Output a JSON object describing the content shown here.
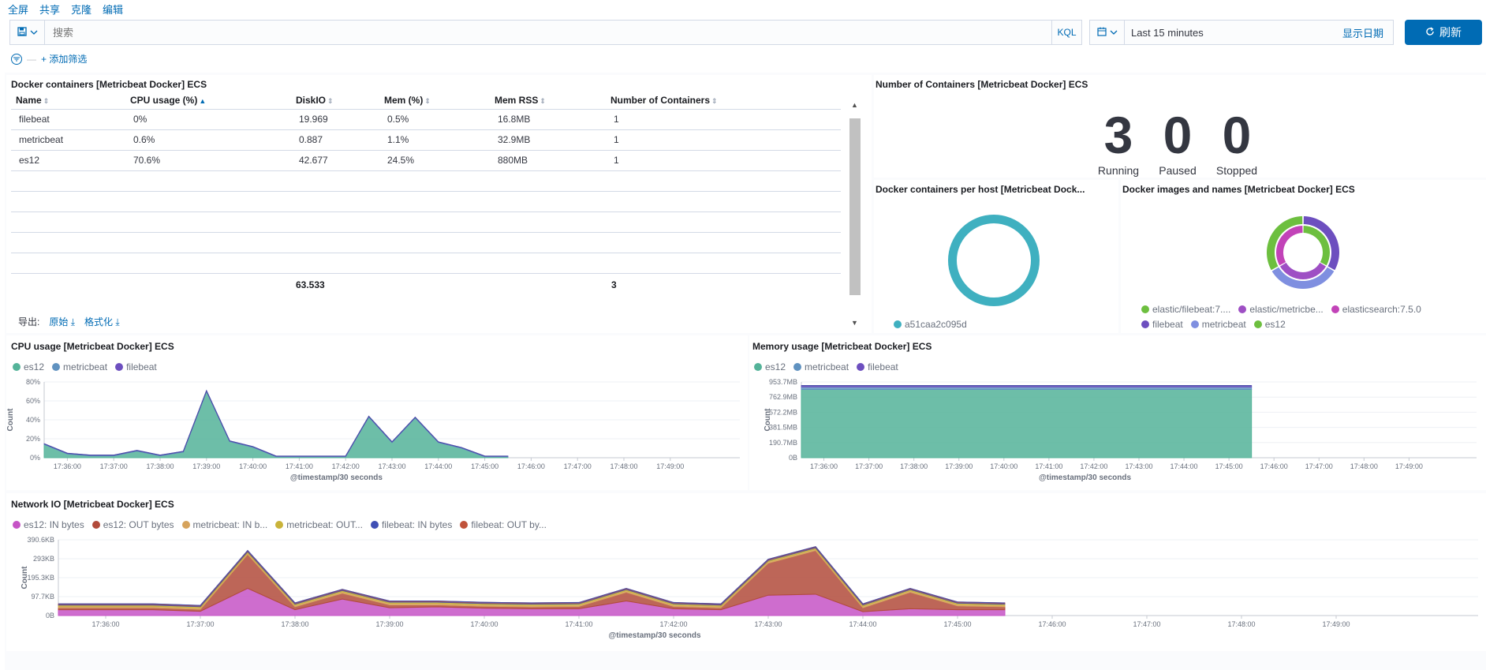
{
  "topmenu": {
    "fullscreen": "全屏",
    "share": "共享",
    "clone": "克隆",
    "edit": "编辑"
  },
  "query": {
    "placeholder": "搜索",
    "kql": "KQL"
  },
  "time": {
    "range": "Last 15 minutes",
    "show_dates": "显示日期",
    "refresh": "刷新"
  },
  "filter": {
    "add": "+ 添加筛选"
  },
  "colors": {
    "accent": "#006bb4",
    "es12": "#54b399",
    "metricbeat": "#6092c0",
    "filebeat": "#6d4fbf"
  },
  "panels": {
    "containers_table": {
      "title": "Docker containers [Metricbeat Docker] ECS",
      "columns": [
        "Name",
        "CPU usage (%)",
        "DiskIO",
        "Mem (%)",
        "Mem RSS",
        "Number of Containers"
      ],
      "rows": [
        [
          "filebeat",
          "0%",
          "19.969",
          "0.5%",
          "16.8MB",
          "1"
        ],
        [
          "metricbeat",
          "0.6%",
          "0.887",
          "1.1%",
          "32.9MB",
          "1"
        ],
        [
          "es12",
          "70.6%",
          "42.677",
          "24.5%",
          "880MB",
          "1"
        ]
      ],
      "totals": {
        "diskio": "63.533",
        "containers": "3"
      },
      "export_label": "导出:",
      "export_raw": "原始",
      "export_formatted": "格式化"
    },
    "num_containers": {
      "title": "Number of Containers [Metricbeat Docker] ECS",
      "metrics": [
        {
          "value": "3",
          "label": "Running"
        },
        {
          "value": "0",
          "label": "Paused"
        },
        {
          "value": "0",
          "label": "Stopped"
        }
      ]
    },
    "per_host": {
      "title": "Docker containers per host [Metricbeat Dock...",
      "legend": [
        "a51caa2c095d"
      ]
    },
    "images_names": {
      "title": "Docker images and names [Metricbeat Docker] ECS",
      "legend": [
        "elastic/filebeat:7....",
        "elastic/metricbe...",
        "elasticsearch:7.5.0",
        "filebeat",
        "metricbeat",
        "es12"
      ]
    },
    "cpu": {
      "title": "CPU usage [Metricbeat Docker] ECS"
    },
    "memory": {
      "title": "Memory usage [Metricbeat Docker] ECS"
    },
    "network": {
      "title": "Network IO [Metricbeat Docker] ECS"
    }
  },
  "chart_data": [
    {
      "type": "pie",
      "title": "Docker containers per host [Metricbeat Dock...",
      "categories": [
        "a51caa2c095d"
      ],
      "values": [
        3
      ],
      "colors": [
        "#3fb0c0"
      ]
    },
    {
      "type": "pie",
      "title": "Docker images and names [Metricbeat Docker] ECS",
      "inner": {
        "categories": [
          "elastic/filebeat:7....",
          "elastic/metricbe...",
          "elasticsearch:7.5.0"
        ],
        "values": [
          1,
          1,
          1
        ],
        "colors": [
          "#6dbf3f",
          "#9e4fc4",
          "#c243b8"
        ]
      },
      "outer": {
        "categories": [
          "filebeat",
          "metricbeat",
          "es12"
        ],
        "values": [
          1,
          1,
          1
        ],
        "colors": [
          "#6d4fbf",
          "#7f8fe0",
          "#6dbf3f"
        ]
      }
    },
    {
      "type": "area",
      "title": "CPU usage [Metricbeat Docker] ECS",
      "xlabel": "@timestamp/30 seconds",
      "ylabel": "Count",
      "ylim": [
        0,
        80
      ],
      "yticks": [
        "0%",
        "20%",
        "40%",
        "60%",
        "80%"
      ],
      "xticks": [
        "17:36:00",
        "17:37:00",
        "17:38:00",
        "17:39:00",
        "17:40:00",
        "17:41:00",
        "17:42:00",
        "17:43:00",
        "17:44:00",
        "17:45:00",
        "17:46:00",
        "17:47:00",
        "17:48:00",
        "17:49:00"
      ],
      "x_start": "17:35:30",
      "x_end": "17:50:30",
      "x": [
        "17:35:30",
        "17:36:00",
        "17:36:30",
        "17:37:00",
        "17:37:30",
        "17:38:00",
        "17:38:30",
        "17:39:00",
        "17:39:30",
        "17:40:00",
        "17:40:30",
        "17:41:00",
        "17:41:30",
        "17:42:00",
        "17:42:30",
        "17:43:00",
        "17:43:30",
        "17:44:00",
        "17:44:30",
        "17:45:00",
        "17:45:30"
      ],
      "legend": [
        "es12",
        "metricbeat",
        "filebeat"
      ],
      "series": [
        {
          "name": "es12",
          "color": "#54b399",
          "values": [
            14,
            4,
            2,
            2,
            7,
            2,
            6,
            70,
            17,
            11,
            1,
            1,
            1,
            1,
            43,
            16,
            42,
            16,
            10,
            1,
            1
          ]
        },
        {
          "name": "metricbeat",
          "color": "#6092c0",
          "values": [
            0.5,
            0.5,
            0.5,
            0.5,
            0.5,
            0.5,
            0.5,
            0.5,
            0.5,
            0.5,
            0.5,
            0.5,
            0.5,
            0.5,
            0.5,
            0.5,
            0.5,
            0.5,
            0.5,
            0.5,
            0.5
          ]
        },
        {
          "name": "filebeat",
          "color": "#6d4fbf",
          "values": [
            0.2,
            0.2,
            0.2,
            0.2,
            0.2,
            0.2,
            0.2,
            0.2,
            0.2,
            0.2,
            0.2,
            0.2,
            0.2,
            0.2,
            0.2,
            0.2,
            0.2,
            0.2,
            0.2,
            0.2,
            0.2
          ]
        }
      ]
    },
    {
      "type": "area",
      "title": "Memory usage [Metricbeat Docker] ECS",
      "xlabel": "@timestamp/30 seconds",
      "ylabel": "Count",
      "ylim": [
        0,
        976
      ],
      "ylim_unit": "MB",
      "yticks": [
        "0B",
        "190.7MB",
        "381.5MB",
        "572.2MB",
        "762.9MB",
        "953.7MB"
      ],
      "xticks": [
        "17:36:00",
        "17:37:00",
        "17:38:00",
        "17:39:00",
        "17:40:00",
        "17:41:00",
        "17:42:00",
        "17:43:00",
        "17:44:00",
        "17:45:00",
        "17:46:00",
        "17:47:00",
        "17:48:00",
        "17:49:00"
      ],
      "x_start": "17:35:30",
      "x_end": "17:50:30",
      "x": [
        "17:35:30",
        "17:45:30"
      ],
      "legend": [
        "es12",
        "metricbeat",
        "filebeat"
      ],
      "series": [
        {
          "name": "es12",
          "color": "#54b399",
          "values": [
            880,
            880
          ]
        },
        {
          "name": "metricbeat",
          "color": "#6092c0",
          "values": [
            32.9,
            32.9
          ]
        },
        {
          "name": "filebeat",
          "color": "#6d4fbf",
          "values": [
            16.8,
            16.8
          ]
        }
      ]
    },
    {
      "type": "area",
      "title": "Network IO [Metricbeat Docker] ECS",
      "xlabel": "@timestamp/30 seconds",
      "ylabel": "Count",
      "ylim": [
        0,
        390.6
      ],
      "ylim_unit": "KB",
      "yticks": [
        "0B",
        "97.7KB",
        "195.3KB",
        "293KB",
        "390.6KB"
      ],
      "xticks": [
        "17:36:00",
        "17:37:00",
        "17:38:00",
        "17:39:00",
        "17:40:00",
        "17:41:00",
        "17:42:00",
        "17:43:00",
        "17:44:00",
        "17:45:00",
        "17:46:00",
        "17:47:00",
        "17:48:00",
        "17:49:00"
      ],
      "x_start": "17:35:30",
      "x_end": "17:50:30",
      "x": [
        "17:35:30",
        "17:36:00",
        "17:36:30",
        "17:37:00",
        "17:37:30",
        "17:38:00",
        "17:38:30",
        "17:39:00",
        "17:39:30",
        "17:40:00",
        "17:40:30",
        "17:41:00",
        "17:41:30",
        "17:42:00",
        "17:42:30",
        "17:43:00",
        "17:43:30",
        "17:44:00",
        "17:44:30",
        "17:45:00",
        "17:45:30"
      ],
      "legend": [
        "es12: IN bytes",
        "es12: OUT bytes",
        "metricbeat: IN b...",
        "metricbeat: OUT...",
        "filebeat: IN bytes",
        "filebeat: OUT by..."
      ],
      "series": [
        {
          "name": "es12: IN bytes",
          "color": "#c654c6",
          "values": [
            30,
            30,
            30,
            22,
            140,
            30,
            85,
            40,
            45,
            38,
            35,
            35,
            75,
            35,
            30,
            105,
            110,
            20,
            35,
            30,
            30
          ]
        },
        {
          "name": "es12: OUT bytes",
          "color": "#b24b3b",
          "values": [
            10,
            10,
            10,
            10,
            175,
            15,
            30,
            15,
            10,
            10,
            10,
            12,
            45,
            12,
            10,
            165,
            225,
            20,
            85,
            20,
            15
          ]
        },
        {
          "name": "metricbeat: IN b...",
          "color": "#d6a35c",
          "values": [
            8,
            8,
            8,
            8,
            8,
            8,
            8,
            8,
            8,
            8,
            8,
            8,
            8,
            8,
            8,
            8,
            8,
            8,
            8,
            8,
            8
          ]
        },
        {
          "name": "metricbeat: OUT...",
          "color": "#c9b33a",
          "values": [
            6,
            6,
            6,
            6,
            6,
            6,
            6,
            6,
            6,
            6,
            6,
            6,
            6,
            6,
            6,
            6,
            6,
            6,
            6,
            6,
            6
          ]
        },
        {
          "name": "filebeat: IN bytes",
          "color": "#3f4fb5",
          "values": [
            3,
            3,
            3,
            3,
            3,
            3,
            3,
            3,
            3,
            3,
            3,
            3,
            3,
            3,
            3,
            3,
            3,
            3,
            3,
            3,
            3
          ]
        },
        {
          "name": "filebeat: OUT by...",
          "color": "#c0533b",
          "values": [
            3,
            3,
            3,
            3,
            3,
            3,
            3,
            3,
            3,
            3,
            3,
            3,
            3,
            3,
            3,
            3,
            3,
            3,
            3,
            3,
            3
          ]
        }
      ]
    }
  ]
}
